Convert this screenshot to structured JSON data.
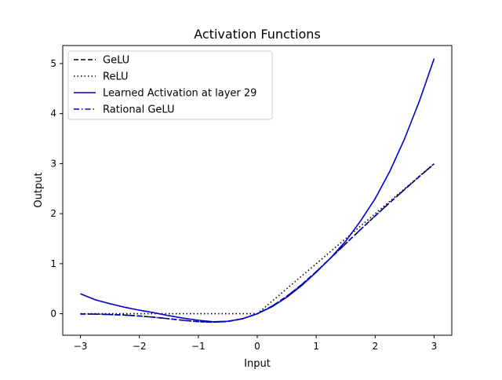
{
  "chart_data": {
    "type": "line",
    "title": "Activation Functions",
    "xlabel": "Input",
    "ylabel": "Output",
    "xlim": [
      -3.3,
      3.3
    ],
    "ylim": [
      -0.43,
      5.36
    ],
    "xticks": [
      -3,
      -2,
      -1,
      0,
      1,
      2,
      3
    ],
    "xtick_labels": [
      "−3",
      "−2",
      "−1",
      "0",
      "1",
      "2",
      "3"
    ],
    "yticks": [
      0,
      1,
      2,
      3,
      4,
      5
    ],
    "ytick_labels": [
      "0",
      "1",
      "2",
      "3",
      "4",
      "5"
    ],
    "grid": false,
    "legend_position": "upper-left",
    "x": [
      -3.0,
      -2.75,
      -2.5,
      -2.25,
      -2.0,
      -1.75,
      -1.5,
      -1.25,
      -1.0,
      -0.75,
      -0.5,
      -0.25,
      0.0,
      0.25,
      0.5,
      0.75,
      1.0,
      1.25,
      1.5,
      1.75,
      2.0,
      2.25,
      2.5,
      2.75,
      3.0
    ],
    "series": [
      {
        "name": "GeLU",
        "color": "#000000",
        "style": "dashed",
        "values": [
          -0.004,
          -0.008,
          -0.016,
          -0.027,
          -0.045,
          -0.07,
          -0.1,
          -0.132,
          -0.159,
          -0.17,
          -0.154,
          -0.1,
          0.0,
          0.15,
          0.346,
          0.58,
          0.841,
          1.118,
          1.4,
          1.68,
          1.955,
          2.223,
          2.484,
          2.742,
          2.996
        ]
      },
      {
        "name": "ReLU",
        "color": "#000000",
        "style": "dotted",
        "values": [
          0,
          0,
          0,
          0,
          0,
          0,
          0,
          0,
          0,
          0,
          0,
          0,
          0.0,
          0.25,
          0.5,
          0.75,
          1.0,
          1.25,
          1.5,
          1.75,
          2.0,
          2.25,
          2.5,
          2.75,
          3.0
        ]
      },
      {
        "name": "Learned Activation at layer 29",
        "color": "#0000cc",
        "style": "solid",
        "values": [
          0.4,
          0.28,
          0.2,
          0.13,
          0.07,
          0.02,
          -0.04,
          -0.09,
          -0.13,
          -0.16,
          -0.15,
          -0.1,
          0.0,
          0.14,
          0.33,
          0.56,
          0.83,
          1.12,
          1.45,
          1.85,
          2.3,
          2.85,
          3.5,
          4.25,
          5.1
        ]
      },
      {
        "name": "Rational GeLU",
        "color": "#0000cc",
        "style": "dashdot",
        "values": [
          -0.004,
          -0.008,
          -0.016,
          -0.027,
          -0.045,
          -0.07,
          -0.1,
          -0.132,
          -0.159,
          -0.17,
          -0.154,
          -0.1,
          0.0,
          0.15,
          0.346,
          0.58,
          0.841,
          1.118,
          1.4,
          1.68,
          1.955,
          2.223,
          2.484,
          2.742,
          2.996
        ]
      }
    ]
  }
}
